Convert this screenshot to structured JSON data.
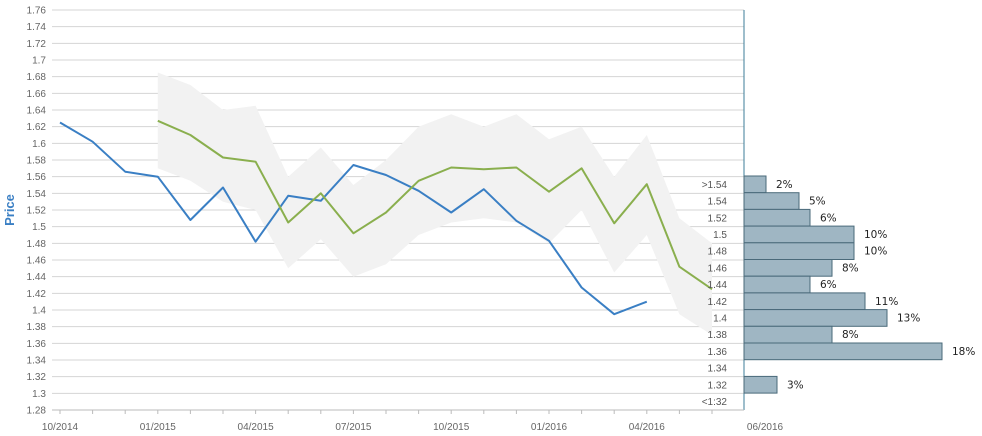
{
  "chart_data": {
    "type": "line",
    "ylabel": "Price",
    "ylim": [
      1.28,
      1.76
    ],
    "y_ticks": [
      "1.28",
      "1.3",
      "1.32",
      "1.34",
      "1.36",
      "1.38",
      "1.4",
      "1.42",
      "1.44",
      "1.46",
      "1.48",
      "1.5",
      "1.52",
      "1.54",
      "1.56",
      "1.58",
      "1.6",
      "1.62",
      "1.64",
      "1.66",
      "1.68",
      "1.7",
      "1.72",
      "1.74",
      "1.76"
    ],
    "x_tick_labels": [
      "10/2014",
      "01/2015",
      "04/2015",
      "07/2015",
      "10/2015",
      "01/2016",
      "04/2016",
      "06/2016"
    ],
    "colors": {
      "historical": "#3a7fc4",
      "forecast": "#8aaf4e",
      "band": "#f2f2f2",
      "bars": "#9fb6c3",
      "bar_border": "#4a6a7a"
    },
    "series": [
      {
        "key": "historical",
        "x": [
          "2014-10",
          "2014-11",
          "2014-12",
          "2015-01",
          "2015-02",
          "2015-03",
          "2015-04",
          "2015-05",
          "2015-06",
          "2015-07",
          "2015-08",
          "2015-09",
          "2015-10",
          "2015-11",
          "2015-12",
          "2016-01",
          "2016-02",
          "2016-03",
          "2016-04"
        ],
        "values": [
          1.625,
          1.602,
          1.566,
          1.56,
          1.508,
          1.547,
          1.482,
          1.537,
          1.531,
          1.574,
          1.562,
          1.543,
          1.517,
          1.545,
          1.507,
          1.483,
          1.427,
          1.395,
          1.41
        ]
      },
      {
        "key": "forecast",
        "x": [
          "2015-01",
          "2015-02",
          "2015-03",
          "2015-04",
          "2015-05",
          "2015-06",
          "2015-07",
          "2015-08",
          "2015-09",
          "2015-10",
          "2015-11",
          "2015-12",
          "2016-01",
          "2016-02",
          "2016-03",
          "2016-04",
          "2016-05",
          "2016-06"
        ],
        "values": [
          1.627,
          1.61,
          1.583,
          1.578,
          1.505,
          1.54,
          1.492,
          1.517,
          1.555,
          1.571,
          1.569,
          1.571,
          1.542,
          1.57,
          1.504,
          1.551,
          1.452,
          1.425
        ]
      }
    ],
    "band": {
      "x": [
        "2015-01",
        "2015-02",
        "2015-03",
        "2015-04",
        "2015-05",
        "2015-06",
        "2015-07",
        "2015-08",
        "2015-09",
        "2015-10",
        "2015-11",
        "2015-12",
        "2016-01",
        "2016-02",
        "2016-03",
        "2016-04",
        "2016-05",
        "2016-06"
      ],
      "upper": [
        1.685,
        1.67,
        1.64,
        1.645,
        1.56,
        1.595,
        1.55,
        1.58,
        1.62,
        1.635,
        1.62,
        1.635,
        1.605,
        1.62,
        1.56,
        1.61,
        1.51,
        1.48
      ],
      "lower": [
        1.57,
        1.555,
        1.53,
        1.52,
        1.45,
        1.485,
        1.44,
        1.455,
        1.49,
        1.505,
        1.51,
        1.505,
        1.48,
        1.52,
        1.445,
        1.49,
        1.395,
        1.37
      ]
    },
    "histogram": [
      {
        "label": ">1.54",
        "pct": 2,
        "pct_label": "2%"
      },
      {
        "label": "1.54",
        "pct": 5,
        "pct_label": "5%"
      },
      {
        "label": "1.52",
        "pct": 6,
        "pct_label": "6%"
      },
      {
        "label": "1.5",
        "pct": 10,
        "pct_label": "10%"
      },
      {
        "label": "1.48",
        "pct": 10,
        "pct_label": "10%"
      },
      {
        "label": "1.46",
        "pct": 8,
        "pct_label": "8%"
      },
      {
        "label": "1.44",
        "pct": 6,
        "pct_label": "6%"
      },
      {
        "label": "1.42",
        "pct": 11,
        "pct_label": "11%"
      },
      {
        "label": "1.4",
        "pct": 13,
        "pct_label": "13%"
      },
      {
        "label": "1.38",
        "pct": 8,
        "pct_label": "8%"
      },
      {
        "label": "1.36",
        "pct": 18,
        "pct_label": "18%"
      },
      {
        "label": "1.34",
        "pct": 0,
        "pct_label": ""
      },
      {
        "label": "1.32",
        "pct": 3,
        "pct_label": "3%"
      },
      {
        "label": "<1:32",
        "pct": 0,
        "pct_label": ""
      }
    ]
  }
}
